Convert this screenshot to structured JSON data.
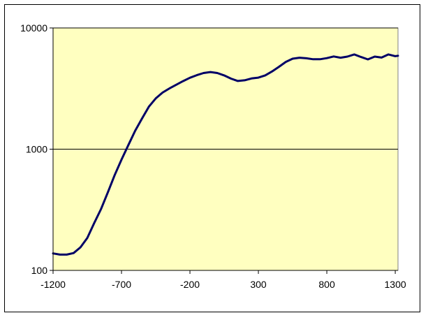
{
  "chart_data": {
    "type": "line",
    "title": "",
    "xlabel": "",
    "ylabel": "",
    "x_scale": "linear",
    "y_scale": "log",
    "xlim": [
      -1200,
      1320
    ],
    "ylim": [
      100,
      10000
    ],
    "x_ticks": [
      -1200,
      -700,
      -200,
      300,
      800,
      1300
    ],
    "x_tick_labels": [
      "-1200",
      "-700",
      "-200",
      "300",
      "800",
      "1300"
    ],
    "y_ticks": [
      100,
      1000,
      10000
    ],
    "y_tick_labels": [
      "100",
      "1000",
      "10000"
    ],
    "grid": {
      "horizontal": true,
      "vertical": false
    },
    "legend": "none",
    "plot_background": "#ffffc0",
    "line_color": "#000066",
    "series": [
      {
        "x": [
          -1200,
          -1150,
          -1100,
          -1050,
          -1000,
          -950,
          -900,
          -850,
          -800,
          -750,
          -700,
          -650,
          -600,
          -550,
          -500,
          -450,
          -400,
          -350,
          -300,
          -250,
          -200,
          -150,
          -100,
          -50,
          0,
          50,
          100,
          150,
          200,
          250,
          300,
          350,
          400,
          450,
          500,
          550,
          600,
          650,
          700,
          750,
          800,
          850,
          900,
          950,
          1000,
          1050,
          1100,
          1150,
          1200,
          1250,
          1300,
          1320
        ],
        "y": [
          138,
          135,
          135,
          139,
          155,
          185,
          245,
          320,
          440,
          610,
          820,
          1080,
          1420,
          1790,
          2240,
          2620,
          2930,
          3170,
          3400,
          3640,
          3880,
          4080,
          4250,
          4330,
          4250,
          4060,
          3820,
          3650,
          3700,
          3830,
          3890,
          4060,
          4380,
          4780,
          5250,
          5580,
          5680,
          5620,
          5520,
          5520,
          5640,
          5820,
          5680,
          5800,
          6050,
          5760,
          5500,
          5800,
          5700,
          6050,
          5850,
          5900
        ]
      }
    ]
  }
}
